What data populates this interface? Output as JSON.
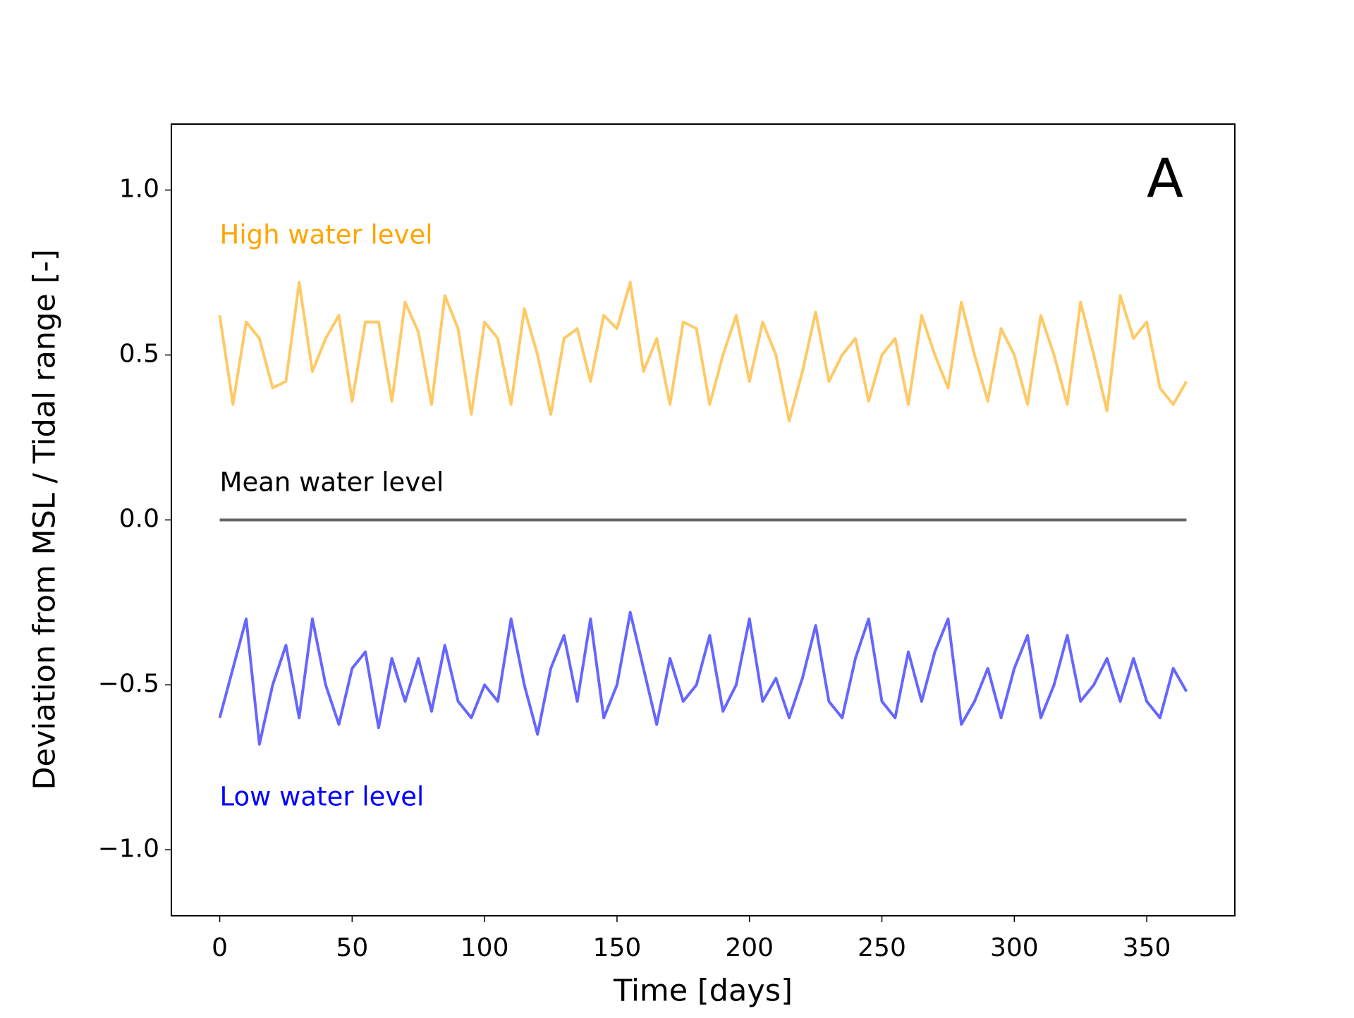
{
  "chart_data": {
    "type": "line",
    "panel_label": "A",
    "x_label": "Time [days]",
    "y_label": "Deviation from MSL / Tidal range [-]",
    "xlim": [
      -18.25,
      383.25
    ],
    "ylim": [
      -1.2,
      1.2
    ],
    "xticks": [
      0,
      50,
      100,
      150,
      200,
      250,
      300,
      350
    ],
    "yticks": [
      {
        "value": -1,
        "label": "−1.0"
      },
      {
        "value": -0.5,
        "label": "−0.5"
      },
      {
        "value": 0,
        "label": "0.0"
      },
      {
        "value": 0.5,
        "label": "0.5"
      },
      {
        "value": 1,
        "label": "1.0"
      }
    ],
    "grid": false,
    "x": [
      0,
      5,
      10,
      15,
      20,
      25,
      30,
      35,
      40,
      45,
      50,
      55,
      60,
      65,
      70,
      75,
      80,
      85,
      90,
      95,
      100,
      105,
      110,
      115,
      120,
      125,
      130,
      135,
      140,
      145,
      150,
      155,
      160,
      165,
      170,
      175,
      180,
      185,
      190,
      195,
      200,
      205,
      210,
      215,
      220,
      225,
      230,
      235,
      240,
      245,
      250,
      255,
      260,
      265,
      270,
      275,
      280,
      285,
      290,
      295,
      300,
      305,
      310,
      315,
      320,
      325,
      330,
      335,
      340,
      345,
      350,
      355,
      360,
      365
    ],
    "series": [
      {
        "name": "High water level",
        "color": "#ffc966",
        "label_color": "#ffa500",
        "values": [
          0.62,
          0.35,
          0.6,
          0.55,
          0.4,
          0.42,
          0.72,
          0.45,
          0.55,
          0.62,
          0.36,
          0.6,
          0.6,
          0.36,
          0.66,
          0.57,
          0.35,
          0.68,
          0.58,
          0.32,
          0.6,
          0.55,
          0.35,
          0.64,
          0.5,
          0.32,
          0.55,
          0.58,
          0.42,
          0.62,
          0.58,
          0.72,
          0.45,
          0.55,
          0.35,
          0.6,
          0.58,
          0.35,
          0.5,
          0.62,
          0.42,
          0.6,
          0.5,
          0.3,
          0.45,
          0.63,
          0.42,
          0.5,
          0.55,
          0.36,
          0.5,
          0.55,
          0.35,
          0.62,
          0.5,
          0.4,
          0.66,
          0.5,
          0.36,
          0.58,
          0.5,
          0.35,
          0.62,
          0.5,
          0.35,
          0.66,
          0.5,
          0.33,
          0.68,
          0.55,
          0.6,
          0.4,
          0.35,
          0.42
        ]
      },
      {
        "name": "Mean water level",
        "color": "#666666",
        "label_color": "#000000",
        "values": [
          0,
          0,
          0,
          0,
          0,
          0,
          0,
          0,
          0,
          0,
          0,
          0,
          0,
          0,
          0,
          0,
          0,
          0,
          0,
          0,
          0,
          0,
          0,
          0,
          0,
          0,
          0,
          0,
          0,
          0,
          0,
          0,
          0,
          0,
          0,
          0,
          0,
          0,
          0,
          0,
          0,
          0,
          0,
          0,
          0,
          0,
          0,
          0,
          0,
          0,
          0,
          0,
          0,
          0,
          0,
          0,
          0,
          0,
          0,
          0,
          0,
          0,
          0,
          0,
          0,
          0,
          0,
          0,
          0,
          0,
          0,
          0,
          0,
          0
        ]
      },
      {
        "name": "Low water level",
        "color": "#6666ff",
        "label_color": "#0000ff",
        "values": [
          -0.6,
          -0.45,
          -0.3,
          -0.68,
          -0.5,
          -0.38,
          -0.6,
          -0.3,
          -0.5,
          -0.62,
          -0.45,
          -0.4,
          -0.63,
          -0.42,
          -0.55,
          -0.42,
          -0.58,
          -0.38,
          -0.55,
          -0.6,
          -0.5,
          -0.55,
          -0.3,
          -0.5,
          -0.65,
          -0.45,
          -0.35,
          -0.55,
          -0.3,
          -0.6,
          -0.5,
          -0.28,
          -0.45,
          -0.62,
          -0.42,
          -0.55,
          -0.5,
          -0.35,
          -0.58,
          -0.5,
          -0.3,
          -0.55,
          -0.48,
          -0.6,
          -0.48,
          -0.32,
          -0.55,
          -0.6,
          -0.42,
          -0.3,
          -0.55,
          -0.6,
          -0.4,
          -0.55,
          -0.4,
          -0.3,
          -0.62,
          -0.55,
          -0.45,
          -0.6,
          -0.45,
          -0.35,
          -0.6,
          -0.5,
          -0.35,
          -0.55,
          -0.5,
          -0.42,
          -0.55,
          -0.42,
          -0.55,
          -0.6,
          -0.45,
          -0.52
        ]
      }
    ]
  }
}
